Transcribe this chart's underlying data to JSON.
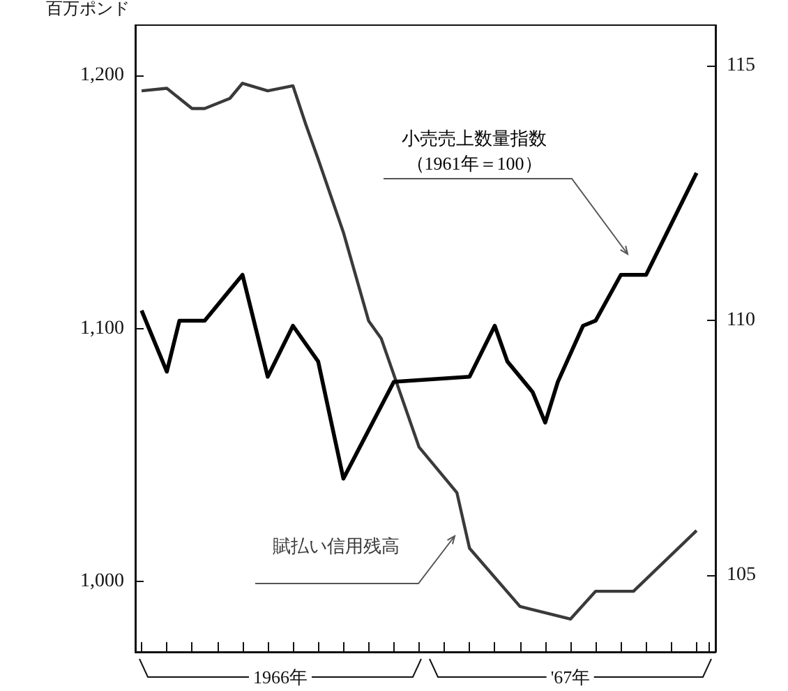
{
  "chart_data": {
    "type": "line",
    "ylabel": "百万ポンド",
    "categories": [
      null,
      null,
      null,
      null,
      null,
      null,
      null,
      null,
      null,
      null,
      null,
      null,
      null,
      null,
      null,
      null,
      null,
      null,
      null,
      null,
      null,
      null,
      null,
      null,
      null,
      null,
      null,
      null,
      null,
      null,
      null,
      null,
      null,
      null,
      null,
      null,
      null,
      null,
      null,
      null,
      null,
      null,
      null,
      null,
      null,
      null
    ],
    "ylim": [
      972,
      1220
    ],
    "yticks": [
      {
        "value": 1000,
        "label": "1,000"
      },
      {
        "value": 1100,
        "label": "1,100"
      },
      {
        "value": 1200,
        "label": "1,200"
      }
    ],
    "y2lim": [
      103.5,
      115.8
    ],
    "y2ticks": [
      105,
      110,
      115
    ],
    "series": [
      {
        "name": "賦払い信用残高",
        "color": "#3a3a3a",
        "values": [
          1194,
          null,
          1195,
          null,
          1187,
          1187,
          null,
          1191,
          1197,
          null,
          1194,
          null,
          1196,
          1181,
          1167,
          null,
          1138,
          null,
          1103,
          1096,
          null,
          null,
          1053,
          null,
          null,
          1035,
          1013,
          null,
          null,
          null,
          990,
          null,
          null,
          null,
          985,
          null,
          996,
          null,
          null,
          996,
          null,
          null,
          null,
          null,
          1020,
          null
        ]
      },
      {
        "name": "小売売上数量指数（1961年＝100）",
        "color": "#000000",
        "axis": "y2",
        "values": [
          110.2,
          null,
          109.0,
          110.0,
          null,
          110.0,
          null,
          110.6,
          110.9,
          null,
          108.9,
          null,
          109.9,
          null,
          109.2,
          null,
          106.9,
          null,
          null,
          null,
          108.8,
          null,
          null,
          null,
          null,
          null,
          108.9,
          null,
          109.9,
          109.2,
          null,
          108.6,
          108.0,
          108.8,
          null,
          109.9,
          110.0,
          null,
          110.9,
          null,
          110.9,
          null,
          null,
          null,
          112.9,
          null
        ]
      }
    ],
    "annotations": [
      "1966年",
      "'67年"
    ],
    "grid": false,
    "legend": false,
    "marker": "none",
    "line_style": "solid"
  }
}
